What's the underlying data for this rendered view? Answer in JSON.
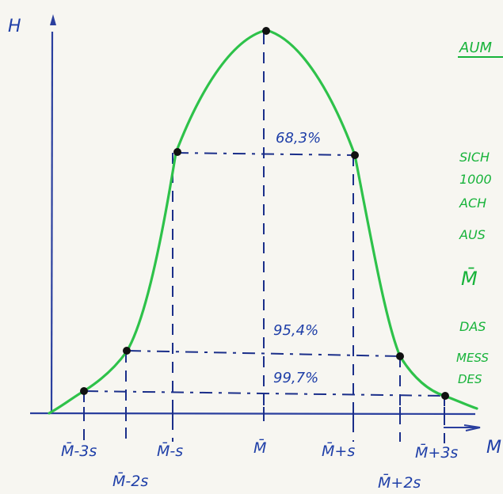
{
  "axes": {
    "y_label": "H",
    "x_label": "M"
  },
  "curve": {
    "color": "#2ec24a",
    "axis_color": "#2a3f9e",
    "text_color": "#1f3fa8",
    "note_color": "#17b33a"
  },
  "x_ticks": [
    {
      "label": "M̄-3s"
    },
    {
      "label": "M̄-2s"
    },
    {
      "label": "M̄-s"
    },
    {
      "label": "M̄"
    },
    {
      "label": "M̄+s"
    },
    {
      "label": "M̄+2s"
    },
    {
      "label": "M̄+3s"
    }
  ],
  "intervals": [
    {
      "label": "68,3%"
    },
    {
      "label": "95,4%"
    },
    {
      "label": "99,7%"
    }
  ],
  "notes": {
    "heading": "AUM",
    "lines": [
      "SICH",
      "1000",
      "ACH",
      "AUS",
      "M̄",
      "DAS",
      "MESS",
      "DES"
    ]
  }
}
